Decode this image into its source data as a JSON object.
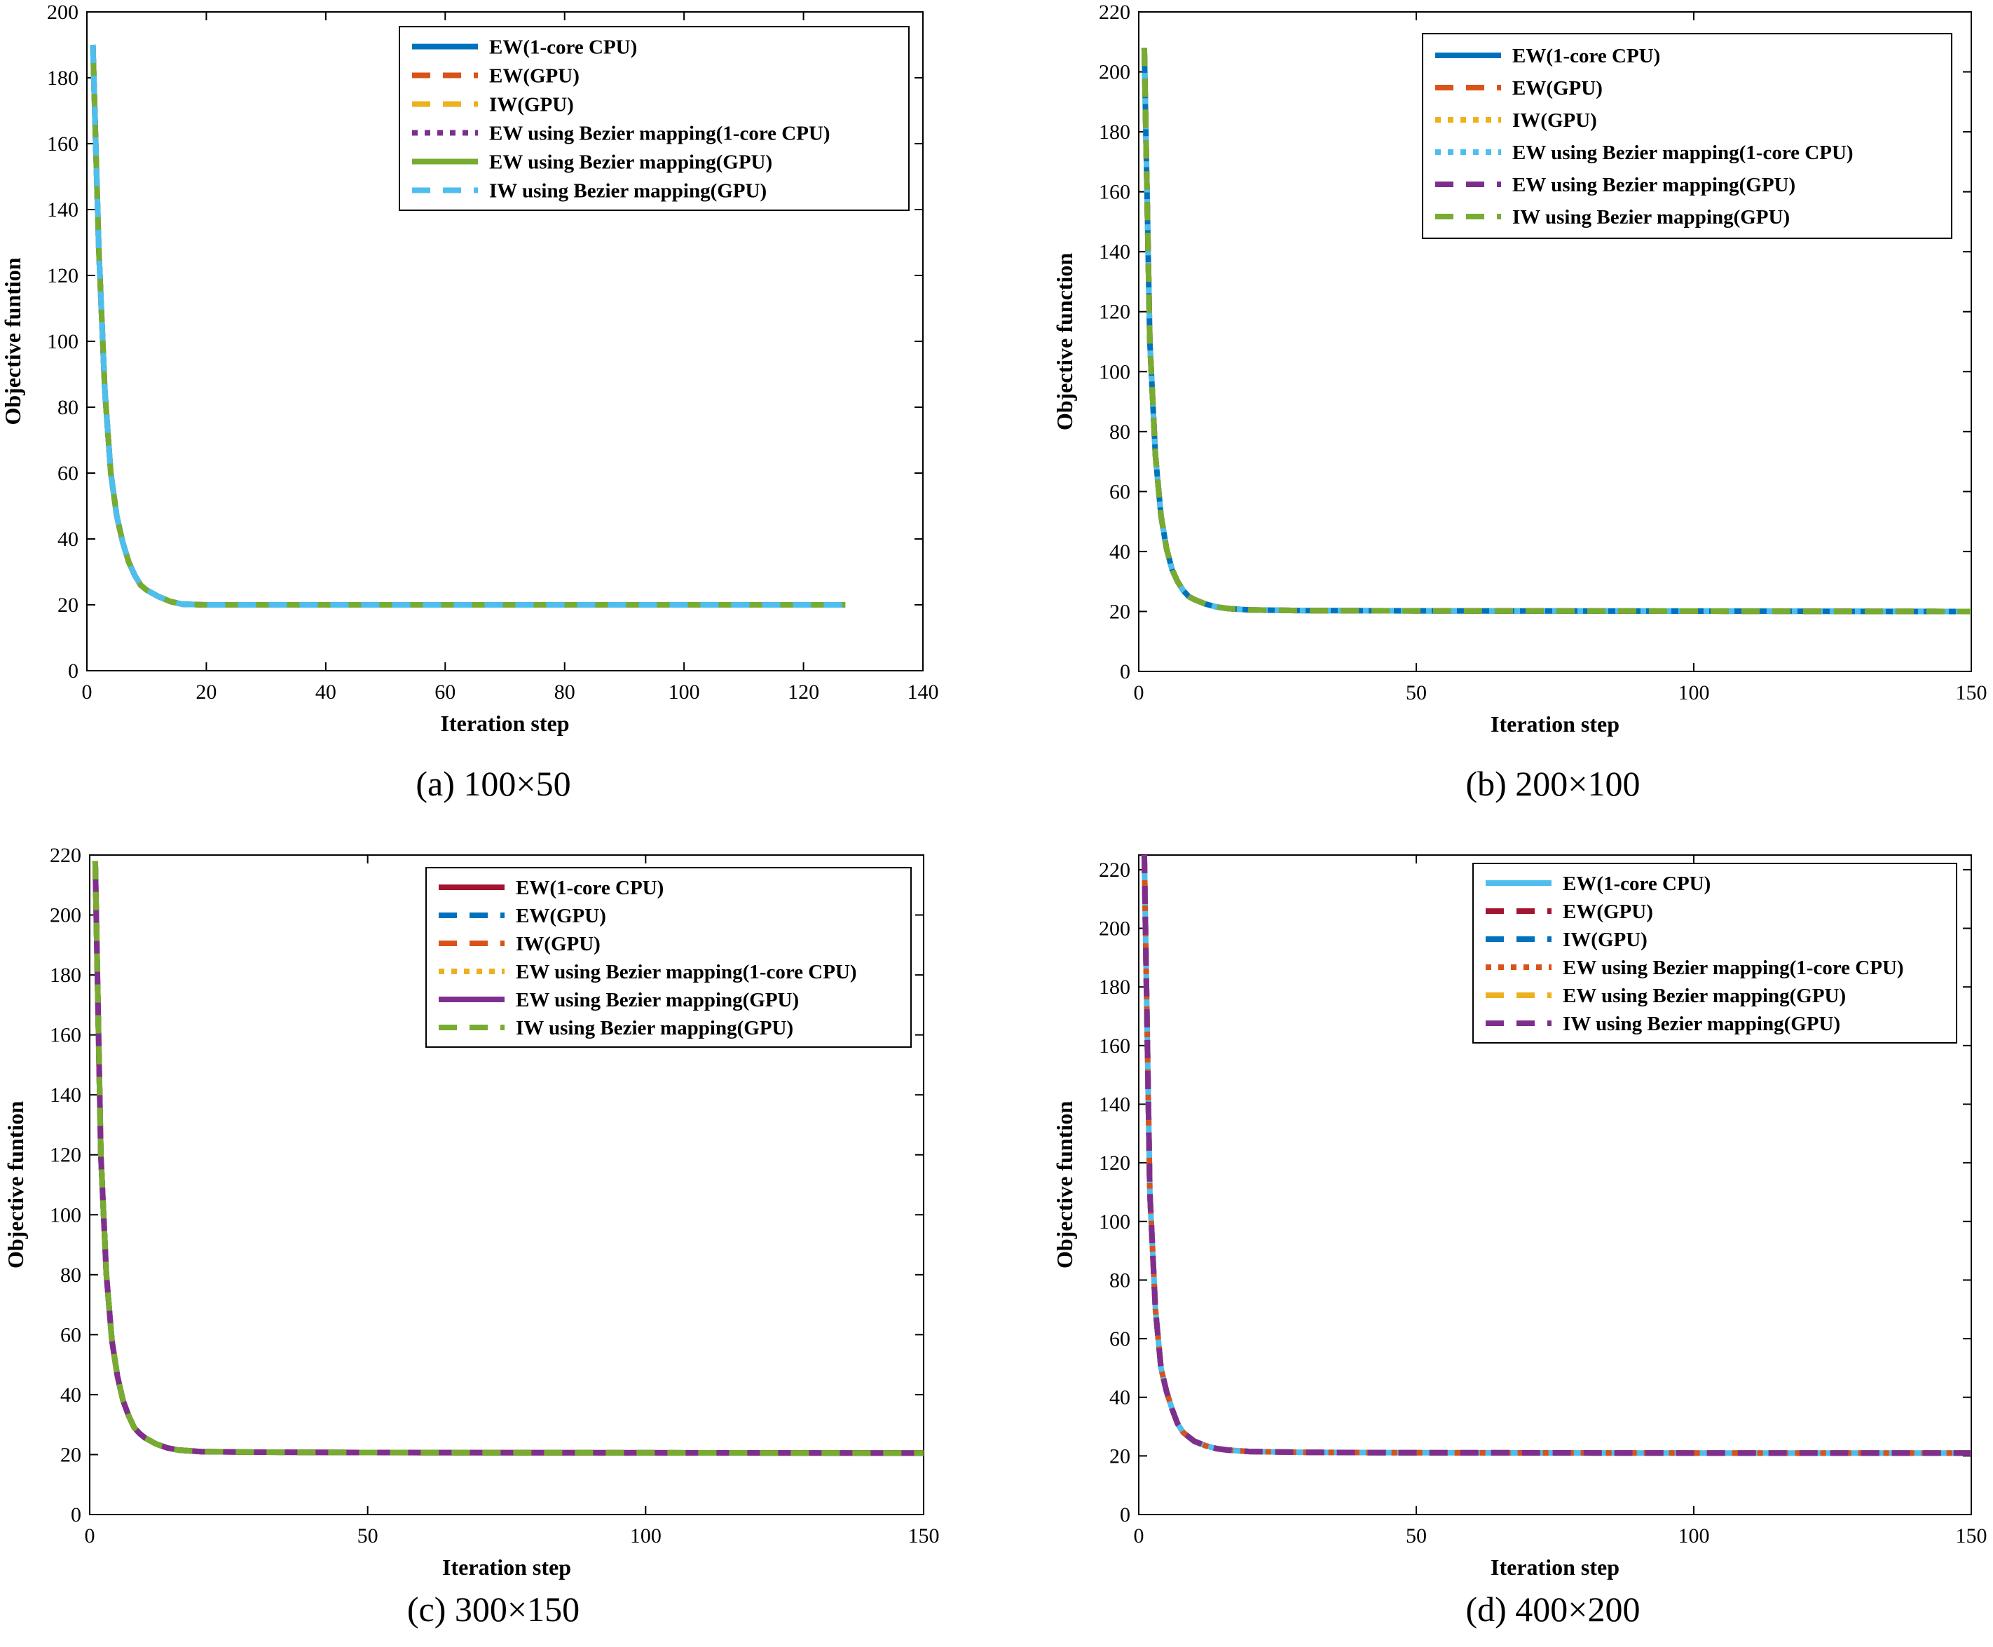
{
  "chart_data": [
    {
      "type": "line",
      "caption": "(a) 100×50",
      "xlabel": "Iteration step",
      "ylabel": "Objective funtion",
      "xlim": [
        0,
        140
      ],
      "ylim": [
        0,
        200
      ],
      "xticks": [
        0,
        20,
        40,
        60,
        80,
        100,
        120,
        140
      ],
      "yticks": [
        0,
        20,
        40,
        60,
        80,
        100,
        120,
        140,
        160,
        180,
        200
      ],
      "legend_position": "top-right",
      "x": [
        1,
        2,
        3,
        4,
        5,
        6,
        7,
        8,
        9,
        10,
        12,
        14,
        16,
        20,
        30,
        40,
        60,
        80,
        100,
        127
      ],
      "y": [
        190,
        128,
        85,
        60,
        47,
        39,
        33,
        29,
        26,
        24.5,
        22.5,
        21,
        20.2,
        20,
        20,
        20,
        20,
        20,
        20,
        20
      ],
      "series": [
        {
          "name": "EW(1-core CPU)",
          "color": "#0072BD",
          "style": "solid"
        },
        {
          "name": "EW(GPU)",
          "color": "#D95319",
          "style": "dashed"
        },
        {
          "name": "IW(GPU)",
          "color": "#EDB120",
          "style": "dashed"
        },
        {
          "name": "EW using Bezier mapping(1-core CPU)",
          "color": "#7E2F8E",
          "style": "dotted"
        },
        {
          "name": "EW using Bezier mapping(GPU)",
          "color": "#77AC30",
          "style": "solid"
        },
        {
          "name": "IW using Bezier mapping(GPU)",
          "color": "#4DBEEE",
          "style": "dashed"
        }
      ]
    },
    {
      "type": "line",
      "caption": "(b) 200×100",
      "xlabel": "Iteration step",
      "ylabel": "Objective function",
      "xlim": [
        0,
        150
      ],
      "ylim": [
        0,
        220
      ],
      "xticks": [
        0,
        50,
        100,
        150
      ],
      "yticks": [
        0,
        20,
        40,
        60,
        80,
        100,
        120,
        140,
        160,
        180,
        200,
        220
      ],
      "legend_position": "top-right",
      "x": [
        1,
        2,
        3,
        4,
        5,
        6,
        7,
        8,
        9,
        10,
        12,
        14,
        16,
        20,
        30,
        50,
        100,
        150
      ],
      "y": [
        208,
        110,
        72,
        52,
        41,
        34,
        30,
        27,
        25,
        24,
        22.5,
        21.5,
        21,
        20.5,
        20.3,
        20.2,
        20.1,
        20
      ],
      "series": [
        {
          "name": "EW(1-core CPU)",
          "color": "#0072BD",
          "style": "solid"
        },
        {
          "name": "EW(GPU)",
          "color": "#D95319",
          "style": "dashed"
        },
        {
          "name": "IW(GPU)",
          "color": "#EDB120",
          "style": "dotted"
        },
        {
          "name": "EW using Bezier mapping(1-core CPU)",
          "color": "#4DBEEE",
          "style": "dotted"
        },
        {
          "name": "EW using Bezier mapping(GPU)",
          "color": "#7E2F8E",
          "style": "dashed"
        },
        {
          "name": "IW using Bezier mapping(GPU)",
          "color": "#77AC30",
          "style": "dashed"
        }
      ]
    },
    {
      "type": "line",
      "caption": "(c) 300×150",
      "xlabel": "Iteration step",
      "ylabel": "Objective funtion",
      "xlim": [
        0,
        150
      ],
      "ylim": [
        0,
        220
      ],
      "xticks": [
        0,
        50,
        100,
        150
      ],
      "yticks": [
        0,
        20,
        40,
        60,
        80,
        100,
        120,
        140,
        160,
        180,
        200,
        220
      ],
      "legend_position": "top-right",
      "x": [
        1,
        2,
        3,
        4,
        5,
        6,
        7,
        8,
        9,
        10,
        12,
        14,
        16,
        20,
        30,
        50,
        100,
        150
      ],
      "y": [
        218,
        120,
        80,
        58,
        46,
        38,
        33,
        29,
        27,
        25.5,
        23.5,
        22.2,
        21.5,
        21,
        20.8,
        20.7,
        20.6,
        20.5
      ],
      "series": [
        {
          "name": "EW(1-core CPU)",
          "color": "#A2142F",
          "style": "solid"
        },
        {
          "name": "EW(GPU)",
          "color": "#0072BD",
          "style": "dashed"
        },
        {
          "name": "IW(GPU)",
          "color": "#D95319",
          "style": "dashed"
        },
        {
          "name": "EW using Bezier mapping(1-core CPU)",
          "color": "#EDB120",
          "style": "dotted"
        },
        {
          "name": "EW using Bezier mapping(GPU)",
          "color": "#7E2F8E",
          "style": "solid"
        },
        {
          "name": "IW using Bezier mapping(GPU)",
          "color": "#77AC30",
          "style": "dashed"
        }
      ]
    },
    {
      "type": "line",
      "caption": "(d) 400×200",
      "xlabel": "Iteration step",
      "ylabel": "Objective funtion",
      "xlim": [
        0,
        150
      ],
      "ylim": [
        0,
        225
      ],
      "xticks": [
        0,
        50,
        100,
        150
      ],
      "yticks": [
        0,
        20,
        40,
        60,
        80,
        100,
        120,
        140,
        160,
        180,
        200,
        220
      ],
      "legend_position": "top-right",
      "x": [
        1,
        2,
        3,
        4,
        5,
        6,
        7,
        8,
        9,
        10,
        12,
        14,
        16,
        20,
        30,
        50,
        100,
        150
      ],
      "y": [
        225,
        110,
        70,
        50,
        42,
        36,
        31,
        28,
        26.5,
        25,
        23.5,
        22.5,
        22,
        21.5,
        21.2,
        21.1,
        21,
        21
      ],
      "series": [
        {
          "name": "EW(1-core CPU)",
          "color": "#4DBEEE",
          "style": "solid"
        },
        {
          "name": "EW(GPU)",
          "color": "#A2142F",
          "style": "dashed"
        },
        {
          "name": "IW(GPU)",
          "color": "#0072BD",
          "style": "dashed"
        },
        {
          "name": "EW using Bezier mapping(1-core CPU)",
          "color": "#D95319",
          "style": "dotted"
        },
        {
          "name": "EW using Bezier mapping(GPU)",
          "color": "#EDB120",
          "style": "dashed"
        },
        {
          "name": "IW using Bezier mapping(GPU)",
          "color": "#7E2F8E",
          "style": "dashed"
        }
      ]
    }
  ]
}
